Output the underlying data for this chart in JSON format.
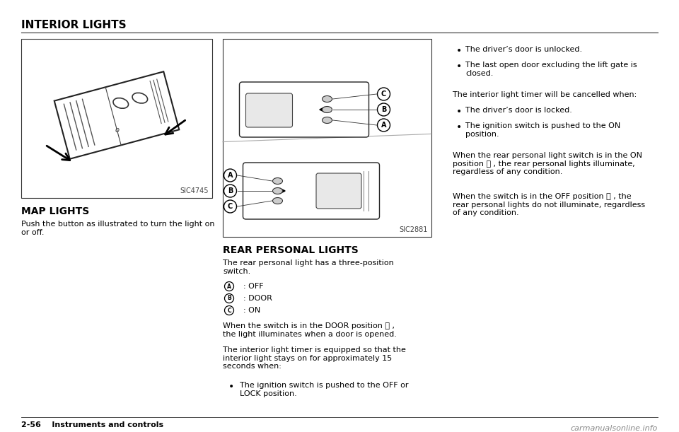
{
  "title": "INTERIOR LIGHTS",
  "bg_color": "#ffffff",
  "text_color": "#000000",
  "left_section_title": "MAP LIGHTS",
  "left_section_body": "Push the button as illustrated to turn the light on\nor off.",
  "left_image_label": "SIC4745",
  "mid_section_title": "REAR PERSONAL LIGHTS",
  "mid_section_body1": "The rear personal light has a three-position\nswitch.",
  "mid_switch_A": "  Ⓐ   : OFF",
  "mid_switch_B": "  Ⓑ   : DOOR",
  "mid_switch_C": "  Ⓒ   : ON",
  "mid_body2": "When the switch is in the DOOR position Ⓑ ,\nthe light illuminates when a door is opened.",
  "mid_body3": "The interior light timer is equipped so that the\ninterior light stays on for approximately 15\nseconds when:",
  "mid_bullet1": "The ignition switch is pushed to the OFF or\nLOCK position.",
  "mid_image_label": "SIC2881",
  "right_bullet1": "The driver’s door is unlocked.",
  "right_bullet2": "The last open door excluding the lift gate is\nclosed.",
  "right_para1": "The interior light timer will be cancelled when:",
  "right_bullet3": "The driver’s door is locked.",
  "right_bullet4": "The ignition switch is pushed to the ON\nposition.",
  "right_para2": "When the rear personal light switch is in the ON\nposition Ⓒ , the rear personal lights illuminate,\nregardless of any condition.",
  "right_para3": "When the switch is in the OFF position Ⓐ , the\nrear personal lights do not illuminate, regardless\nof any condition.",
  "footer_left": "2-56    Instruments and controls",
  "footer_right": "carmanualsonline.info",
  "page_bg": "#ffffff"
}
